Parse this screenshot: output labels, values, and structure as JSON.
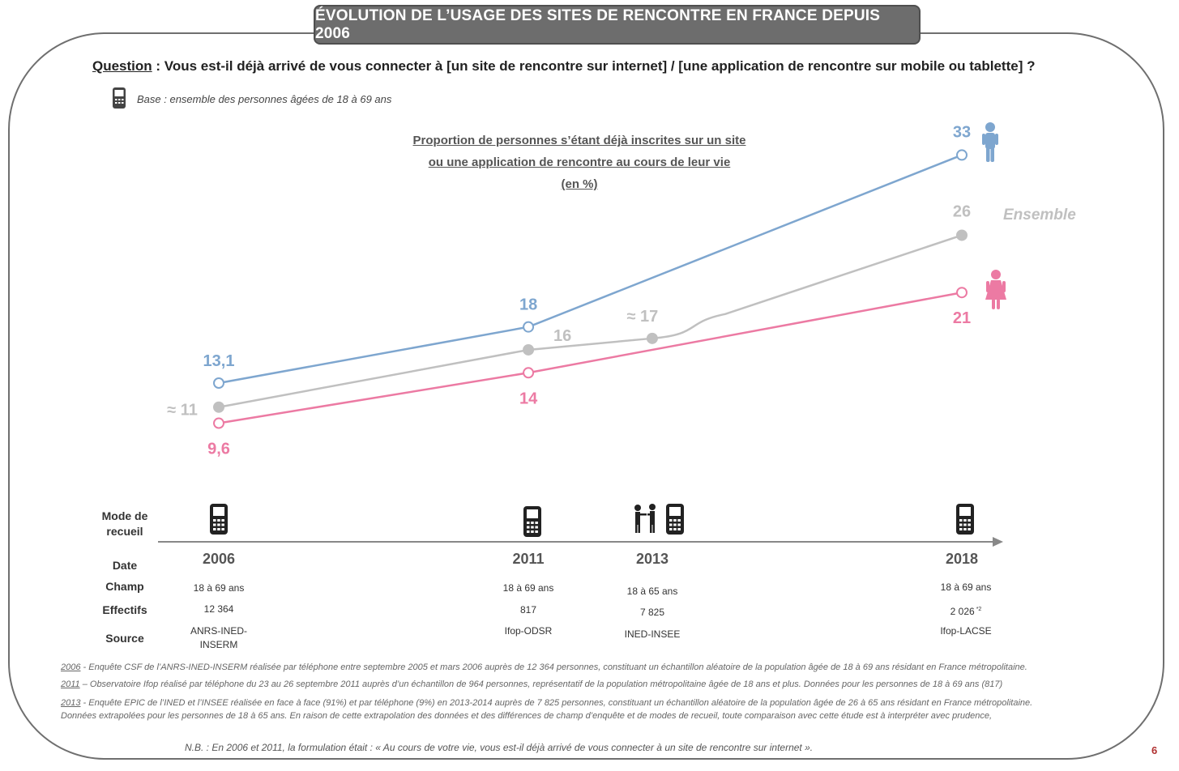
{
  "title": "ÉVOLUTION DE L’USAGE DES SITES DE RENCONTRE EN FRANCE DEPUIS 2006",
  "question": {
    "label": "Question",
    "text": " : Vous est-il déjà arrivé de vous connecter à [un site de rencontre sur internet] / [une application de rencontre sur mobile ou tablette] ?"
  },
  "base": "Base : ensemble des personnes âgées de 18 à 69 ans",
  "chart_data": {
    "type": "line",
    "title_lines": [
      "Proportion de personnes s’étant déjà inscrites sur un site",
      "ou une application de rencontre  au cours de leur vie",
      "(en %)"
    ],
    "x": [
      "2006",
      "2011",
      "2013",
      "2018"
    ],
    "series": [
      {
        "name": "Hommes",
        "color": "#7ea6cf",
        "values": [
          13.1,
          18,
          null,
          33
        ],
        "labels": [
          "13,1",
          "18",
          null,
          "33"
        ]
      },
      {
        "name": "Ensemble",
        "color": "#c0c0c0",
        "values": [
          11,
          16,
          17,
          26
        ],
        "labels": [
          "≈ 11",
          "16",
          "≈ 17",
          "26"
        ]
      },
      {
        "name": "Femmes",
        "color": "#ec7aa3",
        "values": [
          9.6,
          14,
          null,
          21
        ],
        "labels": [
          "9,6",
          "14",
          null,
          "21"
        ]
      }
    ],
    "ensemble_label": "Ensemble"
  },
  "table": {
    "row_labels": {
      "mode": "Mode de recueil",
      "date": "Date",
      "champ": "Champ",
      "effectifs": "Effectifs",
      "source": "Source"
    },
    "columns": [
      {
        "year": "2006",
        "champ": "18 à 69 ans",
        "effectifs": "12 364",
        "source": "ANRS-INED-INSERM",
        "modes": [
          "phone-icon"
        ]
      },
      {
        "year": "2011",
        "champ": "18 à 69 ans",
        "effectifs": "817",
        "source": "Ifop-ODSR",
        "modes": [
          "phone-icon"
        ]
      },
      {
        "year": "2013",
        "champ": "18 à 65 ans",
        "effectifs": "7 825",
        "source": "INED-INSEE",
        "modes": [
          "face-to-face-icon",
          "phone-icon"
        ]
      },
      {
        "year": "2018",
        "champ": "18 à 69 ans",
        "effectifs": "2 026",
        "effectifs_note": "*2",
        "source": "Ifop-LACSE",
        "modes": [
          "phone-icon"
        ]
      }
    ]
  },
  "footnotes": [
    {
      "year": "2006",
      "text": " - Enquête CSF de l’ANRS-INED-INSERM réalisée par téléphone entre septembre 2005 et mars 2006 auprès de 12 364 personnes, constituant un échantillon aléatoire de la population âgée de 18 à 69 ans résidant en France métropolitaine."
    },
    {
      "year": "2011",
      "text": " – Observatoire Ifop réalisé par téléphone du 23 au 26 septembre 2011  auprès d’un échantillon de 964 personnes, représentatif de la population métropolitaine âgée de 18 ans et plus. Données pour les personnes de 18 à 69 ans (817)"
    },
    {
      "year": "2013",
      "text": " - Enquête EPIC de l’INED et l’INSEE réalisée en face à face (91%) et par téléphone (9%) en 2013-2014 auprès de 7 825 personnes, constituant un échantillon aléatoire de la population âgée de 26 à 65 ans résidant en France métropolitaine."
    },
    {
      "year": "",
      "text": "Données extrapolées pour les personnes de 18 à 65 ans. En raison de cette extrapolation des données et des différences de champ d’enquête et de modes de recueil, toute comparaison avec cette étude est à interpréter avec prudence,"
    }
  ],
  "nb": "N.B. : En 2006 et 2011, la formulation était : « Au cours de votre vie, vous est-il déjà arrivé de vous connecter à un site de rencontre sur internet ».",
  "page_number": "6"
}
